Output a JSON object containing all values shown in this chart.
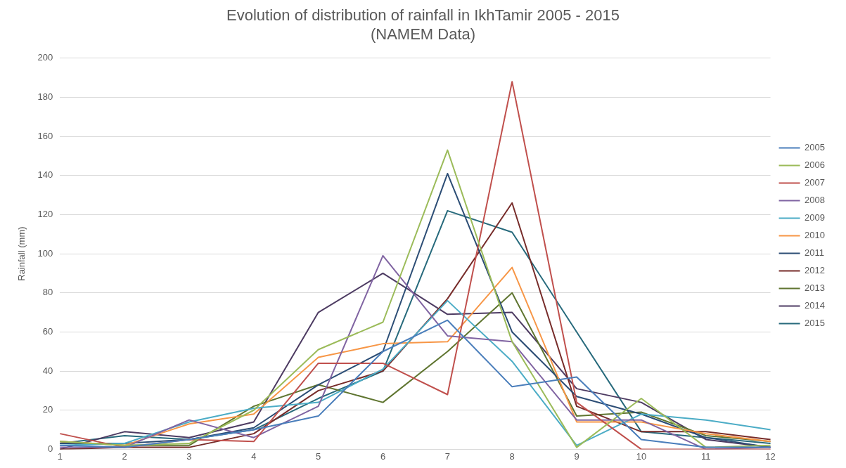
{
  "chart_data": {
    "type": "line",
    "title": "Evolution of distribution of rainfall in IkhTamir 2005 - 2015",
    "subtitle": "(NAMEM Data)",
    "ylabel": "Rainfall (mm)",
    "categories": [
      "1",
      "2",
      "3",
      "4",
      "5",
      "6",
      "7",
      "8",
      "9",
      "10",
      "11",
      "12"
    ],
    "ylim": [
      0,
      200
    ],
    "yticks": [
      0,
      20,
      40,
      60,
      80,
      100,
      120,
      140,
      160,
      180,
      200
    ],
    "grid": "y",
    "legend": "right",
    "marker": "none",
    "line_style": "solid",
    "series": [
      {
        "name": "2005",
        "color": "#4a7ebb",
        "values": [
          2,
          1,
          5,
          10,
          17,
          50,
          66,
          32,
          37,
          5,
          1,
          1
        ]
      },
      {
        "name": "2006",
        "color": "#9bbb59",
        "values": [
          4,
          2,
          3,
          20,
          51,
          65,
          153,
          55,
          1,
          26,
          1,
          2
        ]
      },
      {
        "name": "2007",
        "color": "#c0504d",
        "values": [
          8,
          1,
          5,
          4,
          44,
          44,
          28,
          188,
          24,
          0,
          0,
          0
        ]
      },
      {
        "name": "2008",
        "color": "#8064a2",
        "values": [
          1,
          1,
          15,
          6,
          22,
          99,
          58,
          55,
          15,
          15,
          0,
          1
        ]
      },
      {
        "name": "2009",
        "color": "#4bacc6",
        "values": [
          2,
          3,
          14,
          21,
          24,
          41,
          76,
          45,
          2,
          18,
          15,
          10
        ]
      },
      {
        "name": "2010",
        "color": "#f79646",
        "values": [
          4,
          2,
          13,
          18,
          47,
          54,
          55,
          93,
          14,
          14,
          8,
          4
        ]
      },
      {
        "name": "2011",
        "color": "#2c4d75",
        "values": [
          3,
          3,
          5,
          11,
          33,
          50,
          141,
          60,
          27,
          18,
          6,
          1
        ]
      },
      {
        "name": "2012",
        "color": "#772c2a",
        "values": [
          0,
          1,
          1,
          8,
          30,
          40,
          77,
          126,
          22,
          9,
          9,
          5
        ]
      },
      {
        "name": "2013",
        "color": "#5f7530",
        "values": [
          4,
          2,
          2,
          22,
          33,
          24,
          50,
          80,
          17,
          19,
          7,
          4
        ]
      },
      {
        "name": "2014",
        "color": "#4d3b62",
        "values": [
          0,
          9,
          6,
          14,
          70,
          90,
          69,
          70,
          31,
          24,
          5,
          1
        ]
      },
      {
        "name": "2015",
        "color": "#276a7c",
        "values": [
          3,
          7,
          5,
          10,
          26,
          40,
          122,
          111,
          60,
          9,
          6,
          3
        ]
      }
    ]
  }
}
